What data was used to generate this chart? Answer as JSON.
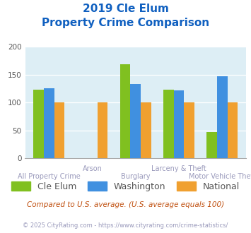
{
  "title_line1": "2019 Cle Elum",
  "title_line2": "Property Crime Comparison",
  "categories": [
    "All Property Crime",
    "Arson",
    "Burglary",
    "Larceny & Theft",
    "Motor Vehicle Theft"
  ],
  "cle_elum": [
    123,
    null,
    168,
    123,
    47
  ],
  "washington": [
    126,
    null,
    133,
    122,
    147
  ],
  "national": [
    100,
    100,
    100,
    100,
    100
  ],
  "colors": {
    "cle_elum": "#80c020",
    "washington": "#4090e0",
    "national": "#f0a030"
  },
  "ylim": [
    0,
    200
  ],
  "yticks": [
    0,
    50,
    100,
    150,
    200
  ],
  "background_color": "#ddeef5",
  "title_color": "#1060c0",
  "xlabel_color": "#9999bb",
  "legend_label1": "Cle Elum",
  "legend_label2": "Washington",
  "legend_label3": "National",
  "footnote1": "Compared to U.S. average. (U.S. average equals 100)",
  "footnote2": "© 2025 CityRating.com - https://www.cityrating.com/crime-statistics/",
  "footnote1_color": "#c05010",
  "footnote2_color": "#9999bb"
}
